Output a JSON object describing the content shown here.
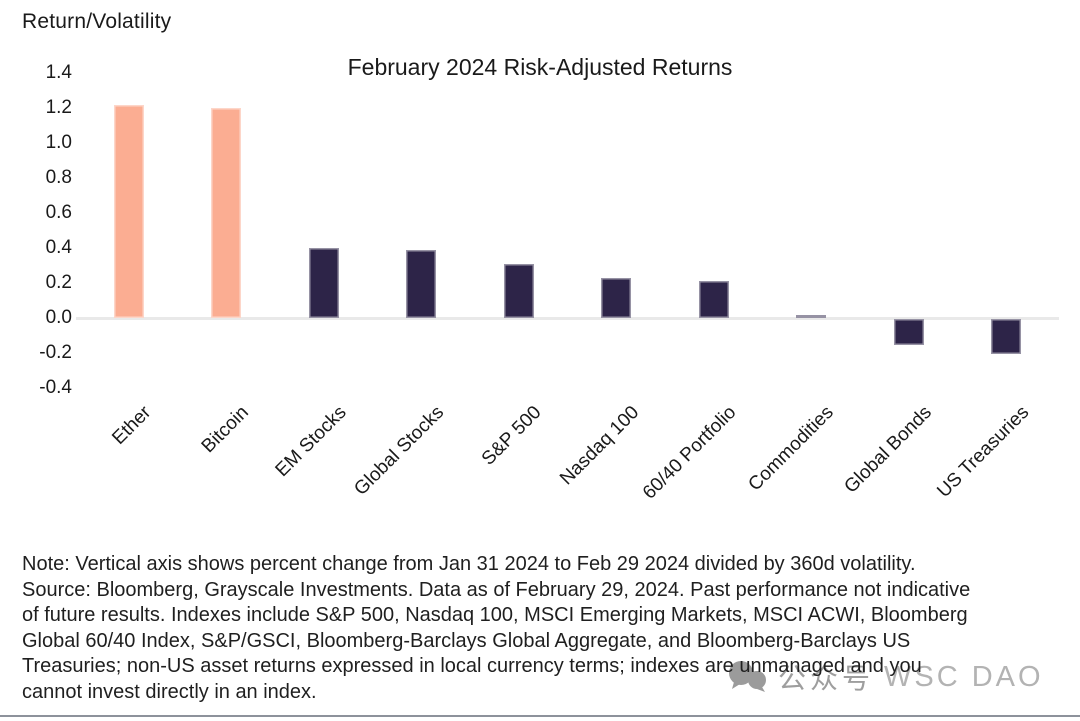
{
  "axis_title": "Return/Volatility",
  "chart_data": {
    "type": "bar",
    "title": "February 2024 Risk-Adjusted Returns",
    "categories": [
      "Ether",
      "Bitcoin",
      "EM Stocks",
      "Global Stocks",
      "S&P 500",
      "Nasdaq 100",
      "60/40 Portfolio",
      "Commodities",
      "Global Bonds",
      "US Treasuries"
    ],
    "values": [
      1.22,
      1.2,
      0.4,
      0.39,
      0.31,
      0.23,
      0.21,
      0.02,
      -0.15,
      -0.2
    ],
    "bar_colors": [
      "#FBAD92",
      "#FBAD92",
      "#2D2448",
      "#2D2448",
      "#2D2448",
      "#2D2448",
      "#2D2448",
      "#2D2448",
      "#2D2448",
      "#2D2448"
    ],
    "color_legend": {
      "crypto": "#FBAD92",
      "traditional": "#2D2448"
    },
    "xlabel": "",
    "ylabel": "Return/Volatility",
    "ylim": [
      -0.4,
      1.4
    ],
    "ytick_labels": [
      "1.4",
      "1.2",
      "1.0",
      "0.8",
      "0.6",
      "0.4",
      "0.2",
      "0.0",
      "-0.2",
      "-0.4"
    ],
    "ytick_values": [
      1.4,
      1.2,
      1.0,
      0.8,
      0.6,
      0.4,
      0.2,
      0.0,
      -0.2,
      -0.4
    ],
    "grid": false,
    "legend": "none",
    "x_label_rotation_deg": 45
  },
  "note": {
    "line1": "Note: Vertical axis shows percent change from Jan 31 2024 to Feb 29 2024 divided by 360d volatility.",
    "line2": "Source: Bloomberg, Grayscale Investments. Data as of February 29, 2024. Past performance not indicative",
    "line3": "of future results. Indexes include S&P 500, Nasdaq 100, MSCI Emerging Markets, MSCI ACWI, Bloomberg",
    "line4": "Global 60/40 Index, S&P/GSCI, Bloomberg-Barclays Global Aggregate, and Bloomberg-Barclays US",
    "line5": "Treasuries; non-US asset returns expressed in local currency terms; indexes are unmanaged and you",
    "line6": "cannot invest directly in an index."
  },
  "watermark": {
    "icon": "chat-bubbles-icon",
    "text_cn": "公众号",
    "text_en": "WSC DAO"
  }
}
